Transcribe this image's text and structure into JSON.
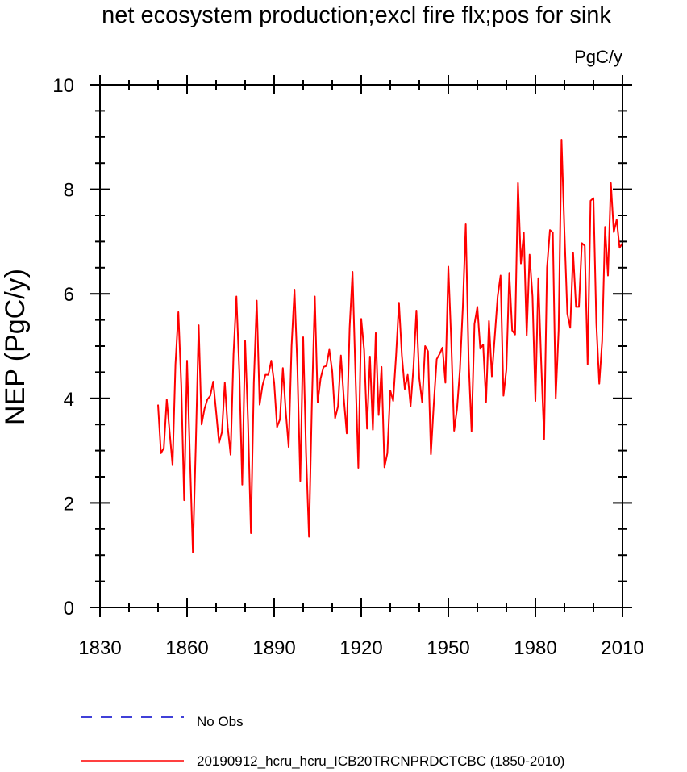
{
  "chart_data": {
    "type": "line",
    "title": "net ecosystem production;excl fire flx;pos for sink",
    "units": "PgC/y",
    "ylabel": "NEP  (PgC/y)",
    "xlabel": "",
    "xlim": [
      1830,
      2010
    ],
    "ylim": [
      0,
      10
    ],
    "x_ticks": [
      1830,
      1860,
      1890,
      1920,
      1950,
      1980,
      2010
    ],
    "x_tick_labels": [
      "1830",
      "1860",
      "1890",
      "1920",
      "1950",
      "1980",
      "2010"
    ],
    "y_ticks": [
      0,
      2,
      4,
      6,
      8,
      10
    ],
    "y_tick_labels": [
      "0",
      "2",
      "4",
      "6",
      "8",
      "10"
    ],
    "legend": [
      {
        "label": "No Obs",
        "color": "#0000cc",
        "style": "dashed"
      },
      {
        "label": "20190912_hcru_hcru_ICB20TRCNPRDCTCBC (1850-2010)",
        "color": "#ff0000",
        "style": "solid"
      }
    ],
    "series": [
      {
        "name": "20190912_hcru_hcru_ICB20TRCNPRDCTCBC (1850-2010)",
        "color": "#ff0000",
        "x_start": 1850,
        "x_step": 1,
        "values": [
          3.88,
          2.95,
          3.05,
          3.98,
          3.35,
          2.72,
          4.65,
          5.65,
          4.25,
          2.05,
          4.72,
          2.85,
          1.05,
          3.1,
          5.4,
          3.5,
          3.8,
          3.98,
          4.05,
          4.32,
          3.75,
          3.15,
          3.35,
          4.3,
          3.45,
          2.92,
          4.85,
          5.95,
          4.5,
          2.35,
          5.1,
          3.55,
          1.42,
          4.3,
          5.87,
          3.88,
          4.25,
          4.45,
          4.45,
          4.72,
          4.3,
          3.45,
          3.6,
          4.58,
          3.75,
          3.07,
          5.0,
          6.08,
          4.6,
          2.42,
          5.17,
          2.95,
          1.35,
          3.9,
          5.95,
          3.92,
          4.38,
          4.6,
          4.62,
          4.93,
          4.52,
          3.62,
          3.85,
          4.82,
          4.0,
          3.33,
          5.35,
          6.42,
          4.48,
          2.67,
          5.52,
          4.92,
          3.42,
          4.8,
          3.4,
          5.25,
          3.68,
          4.6,
          2.68,
          2.95,
          4.15,
          3.95,
          4.82,
          5.83,
          4.82,
          4.18,
          4.45,
          3.85,
          4.6,
          5.68,
          4.38,
          3.92,
          5.0,
          4.9,
          2.93,
          3.9,
          4.75,
          4.85,
          4.97,
          4.3,
          6.52,
          5.1,
          3.38,
          3.8,
          4.55,
          5.75,
          7.33,
          4.72,
          3.37,
          5.42,
          5.75,
          4.95,
          5.03,
          3.93,
          5.48,
          4.42,
          5.18,
          5.95,
          6.35,
          4.05,
          4.55,
          6.4,
          5.3,
          5.22,
          8.12,
          6.58,
          7.17,
          5.2,
          6.75,
          5.95,
          3.95,
          6.3,
          4.68,
          3.22,
          6.5,
          7.22,
          7.17,
          4.0,
          5.3,
          8.95,
          7.2,
          5.62,
          5.35,
          6.78,
          5.75,
          5.75,
          6.97,
          6.92,
          4.65,
          7.78,
          7.83,
          5.43,
          4.28,
          5.1,
          7.28,
          6.35,
          8.12,
          7.18,
          7.42,
          6.88,
          6.97
        ]
      }
    ]
  }
}
